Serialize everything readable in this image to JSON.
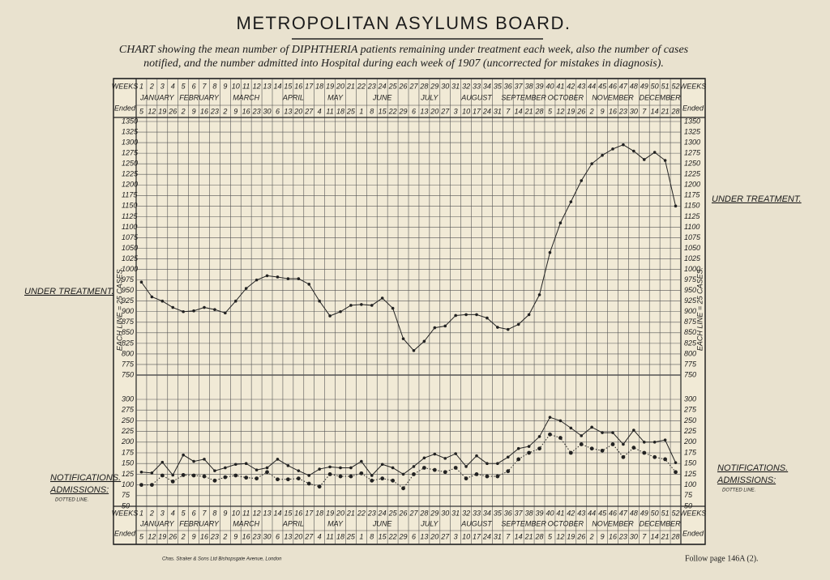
{
  "title": "METROPOLITAN ASYLUMS BOARD.",
  "subtitle": [
    "CHART showing the mean number of DIPHTHERIA patients remaining under treatment each week, also the number of cases",
    "notified, and the number admitted into Hospital during each week of 1907 (uncorrected for mistakes in diagnosis)."
  ],
  "header": {
    "weeks": "WEEKS",
    "ended": "Ended"
  },
  "months": [
    "JANUARY",
    "FEBRUARY",
    "MARCH",
    "APRIL",
    "MAY",
    "JUNE",
    "JULY",
    "AUGUST",
    "SEPTEMBER",
    "OCTOBER",
    "NOVEMBER",
    "DECEMBER"
  ],
  "week_ended": [
    5,
    12,
    19,
    26,
    2,
    9,
    16,
    23,
    2,
    9,
    16,
    23,
    30,
    6,
    13,
    20,
    27,
    4,
    11,
    18,
    25,
    1,
    8,
    15,
    22,
    29,
    6,
    13,
    20,
    27,
    3,
    10,
    17,
    24,
    31,
    7,
    14,
    21,
    28,
    5,
    12,
    19,
    26,
    2,
    9,
    16,
    23,
    30,
    7,
    14,
    21,
    28
  ],
  "footer": {
    "printer": "Chas. Straker & Sons Ltd Bishopsgate Avenue, London",
    "page": "Follow page 146A (2)."
  },
  "chart_data": [
    {
      "type": "line",
      "y_label": "EACH LINE = 25 CASES.",
      "categories": [
        1,
        2,
        3,
        4,
        5,
        6,
        7,
        8,
        9,
        10,
        11,
        12,
        13,
        14,
        15,
        16,
        17,
        18,
        19,
        20,
        21,
        22,
        23,
        24,
        25,
        26,
        27,
        28,
        29,
        30,
        31,
        32,
        33,
        34,
        35,
        36,
        37,
        38,
        39,
        40,
        41,
        42,
        43,
        44,
        45,
        46,
        47,
        48,
        49,
        50,
        51,
        52
      ],
      "series": [
        {
          "name": "UNDER TREATMENT.",
          "color": "#222222",
          "line_style": "solid",
          "values": [
            970,
            935,
            925,
            910,
            900,
            902,
            910,
            905,
            897,
            925,
            955,
            975,
            985,
            982,
            978,
            978,
            965,
            925,
            890,
            900,
            915,
            917,
            915,
            932,
            908,
            836,
            808,
            830,
            862,
            866,
            891,
            893,
            893,
            885,
            863,
            858,
            870,
            893,
            940,
            1040,
            1110,
            1160,
            1210,
            1250,
            1270,
            1285,
            1295,
            1280,
            1260,
            1277,
            1258,
            1150
          ]
        }
      ],
      "ylim": [
        750,
        1350
      ],
      "yticks": [
        750,
        775,
        800,
        825,
        850,
        875,
        900,
        925,
        950,
        975,
        1000,
        1025,
        1050,
        1075,
        1100,
        1125,
        1150,
        1175,
        1200,
        1225,
        1250,
        1275,
        1300,
        1325,
        1350
      ],
      "grid": true
    },
    {
      "type": "line",
      "y_label": "EACH LINE = 25 CASES.",
      "legend_note": "DOTTED LINE.",
      "categories": [
        1,
        2,
        3,
        4,
        5,
        6,
        7,
        8,
        9,
        10,
        11,
        12,
        13,
        14,
        15,
        16,
        17,
        18,
        19,
        20,
        21,
        22,
        23,
        24,
        25,
        26,
        27,
        28,
        29,
        30,
        31,
        32,
        33,
        34,
        35,
        36,
        37,
        38,
        39,
        40,
        41,
        42,
        43,
        44,
        45,
        46,
        47,
        48,
        49,
        50,
        51,
        52
      ],
      "series": [
        {
          "name": "NOTIFICATIONS.",
          "color": "#222222",
          "line_style": "solid",
          "values": [
            130,
            128,
            153,
            123,
            170,
            155,
            160,
            133,
            140,
            148,
            150,
            135,
            140,
            160,
            145,
            133,
            122,
            137,
            142,
            140,
            140,
            155,
            122,
            148,
            140,
            125,
            143,
            163,
            172,
            162,
            173,
            143,
            168,
            150,
            150,
            165,
            185,
            190,
            213,
            258,
            250,
            233,
            215,
            235,
            222,
            222,
            195,
            228,
            200,
            200,
            205,
            152
          ]
        },
        {
          "name": "ADMISSIONS:",
          "color": "#222222",
          "line_style": "dotted",
          "values": [
            100,
            100,
            122,
            108,
            123,
            122,
            120,
            110,
            118,
            122,
            117,
            115,
            130,
            113,
            113,
            115,
            103,
            96,
            125,
            120,
            120,
            127,
            110,
            115,
            110,
            92,
            125,
            140,
            135,
            130,
            140,
            115,
            125,
            120,
            120,
            132,
            160,
            175,
            185,
            218,
            210,
            175,
            195,
            185,
            180,
            195,
            165,
            187,
            175,
            165,
            160,
            130
          ]
        }
      ],
      "ylim": [
        50,
        300
      ],
      "yticks": [
        50,
        75,
        100,
        125,
        150,
        175,
        200,
        225,
        250,
        275,
        300
      ],
      "grid": true
    }
  ]
}
